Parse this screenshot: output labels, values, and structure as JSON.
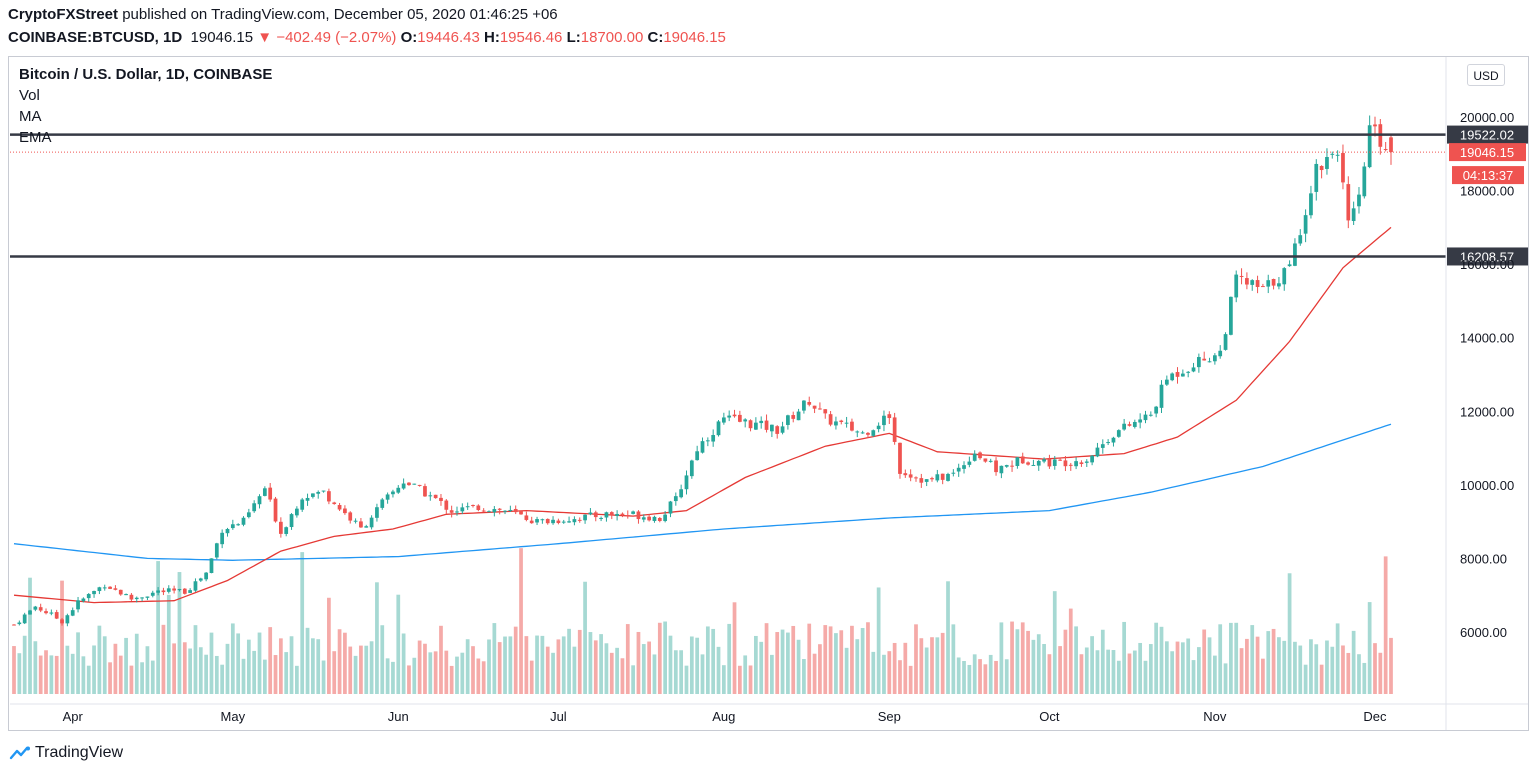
{
  "header": {
    "author": "CryptoFXStreet",
    "published_text": "published on TradingView.com, December 05, 2020 01:46:25 +06",
    "symbol": "COINBASE:BTCUSD, 1D",
    "last": "19046.15",
    "change": "−402.49 (−2.07%)",
    "o_label": "O:",
    "o_value": "19446.43",
    "h_label": "H:",
    "h_value": "19546.46",
    "l_label": "L:",
    "l_value": "18700.00",
    "c_label": "C:",
    "c_value": "19046.15"
  },
  "legend": {
    "title": "Bitcoin / U.S. Dollar, 1D, COINBASE",
    "vol": "Vol",
    "ma": "MA",
    "ema": "EMA"
  },
  "currency_button": "USD",
  "footer": {
    "brand": "TradingView"
  },
  "colors": {
    "up": "#26a69a",
    "down": "#ef5350",
    "vol_up": "#a6d9d3",
    "vol_down": "#f5aaa8",
    "ema": "#e53935",
    "ma": "#2196f3",
    "level_line": "#363a45"
  },
  "chart_data": {
    "type": "candlestick",
    "title": "Bitcoin / U.S. Dollar, 1D, COINBASE",
    "x_tick_labels": [
      "Apr",
      "May",
      "Jun",
      "Jul",
      "Aug",
      "Sep",
      "Oct",
      "Nov",
      "Dec"
    ],
    "y_tick_labels": [
      "6000.00",
      "8000.00",
      "10000.00",
      "12000.00",
      "14000.00",
      "16000.00",
      "18000.00",
      "20000.00"
    ],
    "y_ticks": [
      6000,
      8000,
      10000,
      12000,
      14000,
      16000,
      18000,
      20000
    ],
    "ylim": [
      4000,
      20800
    ],
    "horizontal_levels": [
      {
        "value": 19522.02,
        "label": "19522.02"
      },
      {
        "value": 16208.57,
        "label": "16208.57"
      }
    ],
    "last_price": {
      "value": 19046.15,
      "label": "19046.15",
      "countdown": "04:13:37"
    },
    "price_anchors": [
      [
        "2020-03-21",
        6200
      ],
      [
        "2020-03-25",
        6700
      ],
      [
        "2020-03-30",
        6300
      ],
      [
        "2020-04-02",
        6800
      ],
      [
        "2020-04-07",
        7300
      ],
      [
        "2020-04-12",
        6900
      ],
      [
        "2020-04-17",
        7100
      ],
      [
        "2020-04-22",
        7100
      ],
      [
        "2020-04-26",
        7600
      ],
      [
        "2020-04-29",
        8800
      ],
      [
        "2020-05-03",
        9000
      ],
      [
        "2020-05-07",
        9900
      ],
      [
        "2020-05-10",
        8700
      ],
      [
        "2020-05-14",
        9700
      ],
      [
        "2020-05-18",
        9800
      ],
      [
        "2020-05-25",
        8800
      ],
      [
        "2020-05-29",
        9500
      ],
      [
        "2020-06-02",
        10100
      ],
      [
        "2020-06-07",
        9700
      ],
      [
        "2020-06-11",
        9300
      ],
      [
        "2020-06-16",
        9400
      ],
      [
        "2020-06-21",
        9300
      ],
      [
        "2020-06-27",
        9000
      ],
      [
        "2020-07-05",
        9100
      ],
      [
        "2020-07-10",
        9200
      ],
      [
        "2020-07-15",
        9200
      ],
      [
        "2020-07-20",
        9100
      ],
      [
        "2020-07-23",
        9600
      ],
      [
        "2020-07-27",
        11000
      ],
      [
        "2020-08-01",
        11800
      ],
      [
        "2020-08-05",
        11700
      ],
      [
        "2020-08-11",
        11500
      ],
      [
        "2020-08-17",
        12300
      ],
      [
        "2020-08-20",
        11800
      ],
      [
        "2020-08-27",
        11400
      ],
      [
        "2020-09-01",
        11900
      ],
      [
        "2020-09-03",
        10400
      ],
      [
        "2020-09-08",
        10100
      ],
      [
        "2020-09-13",
        10300
      ],
      [
        "2020-09-17",
        10900
      ],
      [
        "2020-09-21",
        10400
      ],
      [
        "2020-09-26",
        10700
      ],
      [
        "2020-10-02",
        10600
      ],
      [
        "2020-10-08",
        10700
      ],
      [
        "2020-10-13",
        11400
      ],
      [
        "2020-10-20",
        11900
      ],
      [
        "2020-10-23",
        12900
      ],
      [
        "2020-10-28",
        13300
      ],
      [
        "2020-11-02",
        13600
      ],
      [
        "2020-11-05",
        15600
      ],
      [
        "2020-11-10",
        15300
      ],
      [
        "2020-11-15",
        15900
      ],
      [
        "2020-11-20",
        18600
      ],
      [
        "2020-11-24",
        19200
      ],
      [
        "2020-11-26",
        17000
      ],
      [
        "2020-11-28",
        17700
      ],
      [
        "2020-11-30",
        19700
      ],
      [
        "2020-12-04",
        19046
      ]
    ],
    "ema_anchors": [
      [
        "2020-03-21",
        7000
      ],
      [
        "2020-04-05",
        6800
      ],
      [
        "2020-04-20",
        6850
      ],
      [
        "2020-04-30",
        7400
      ],
      [
        "2020-05-10",
        8200
      ],
      [
        "2020-05-20",
        8600
      ],
      [
        "2020-05-31",
        8800
      ],
      [
        "2020-06-10",
        9200
      ],
      [
        "2020-06-25",
        9300
      ],
      [
        "2020-07-15",
        9150
      ],
      [
        "2020-07-25",
        9300
      ],
      [
        "2020-08-05",
        10200
      ],
      [
        "2020-08-20",
        11050
      ],
      [
        "2020-09-01",
        11400
      ],
      [
        "2020-09-10",
        10900
      ],
      [
        "2020-09-30",
        10700
      ],
      [
        "2020-10-15",
        10850
      ],
      [
        "2020-10-25",
        11300
      ],
      [
        "2020-11-05",
        12300
      ],
      [
        "2020-11-15",
        13900
      ],
      [
        "2020-11-25",
        15900
      ],
      [
        "2020-12-04",
        17000
      ]
    ],
    "ma_anchors": [
      [
        "2020-03-21",
        8400
      ],
      [
        "2020-04-15",
        8000
      ],
      [
        "2020-05-01",
        7950
      ],
      [
        "2020-06-01",
        8050
      ],
      [
        "2020-07-01",
        8400
      ],
      [
        "2020-08-01",
        8800
      ],
      [
        "2020-09-01",
        9100
      ],
      [
        "2020-10-01",
        9300
      ],
      [
        "2020-10-20",
        9800
      ],
      [
        "2020-11-10",
        10500
      ],
      [
        "2020-12-04",
        11650
      ]
    ]
  }
}
